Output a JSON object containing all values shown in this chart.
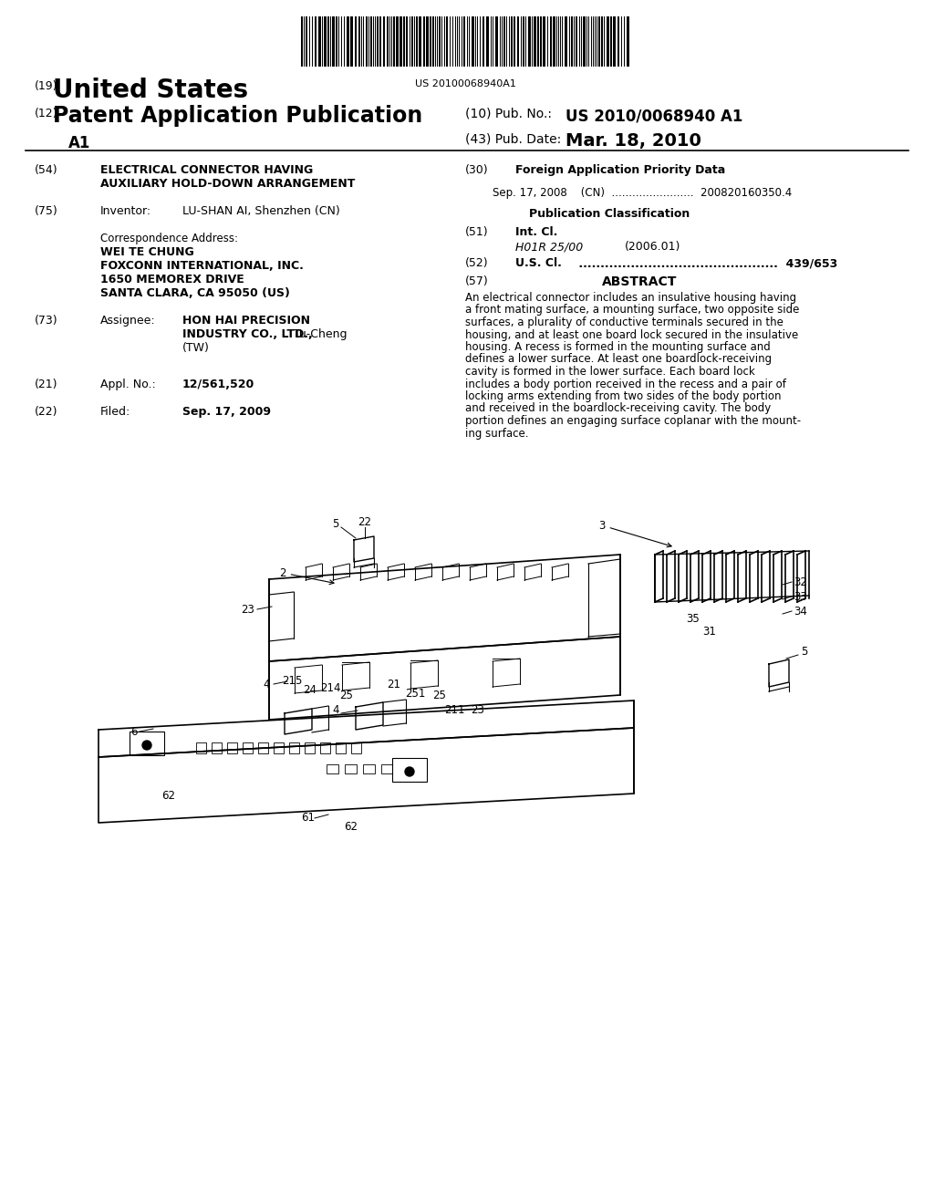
{
  "background_color": "#ffffff",
  "barcode_text": "US 20100068940A1",
  "header_line1_num": "(19)",
  "header_line1_text": "United States",
  "header_line2_num": "(12)",
  "header_line2_text": "Patent Application Publication",
  "header_line2b": "A1",
  "pub_no_label": "(10) Pub. No.:",
  "pub_no_value": "US 2010/0068940 A1",
  "pub_date_label": "(43) Pub. Date:",
  "pub_date_value": "Mar. 18, 2010",
  "abstract_lines": [
    "An electrical connector includes an insulative housing having",
    "a front mating surface, a mounting surface, two opposite side",
    "surfaces, a plurality of conductive terminals secured in the",
    "housing, and at least one board lock secured in the insulative",
    "housing. A recess is formed in the mounting surface and",
    "defines a lower surface. At least one boardlock-receiving",
    "cavity is formed in the lower surface. Each board lock",
    "includes a body portion received in the recess and a pair of",
    "locking arms extending from two sides of the body portion",
    "and received in the boardlock-receiving cavity. The body",
    "portion defines an engaging surface coplanar with the mount-",
    "ing surface."
  ]
}
